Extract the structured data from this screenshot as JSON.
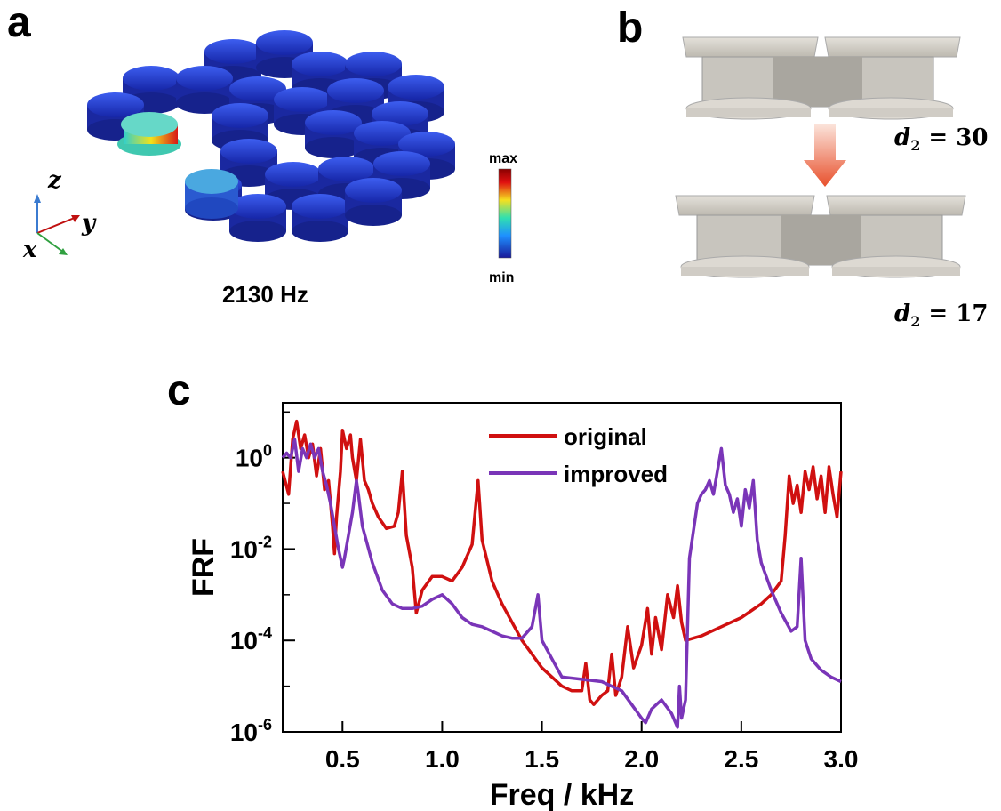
{
  "panel_a": {
    "letter": "a",
    "caption": "2130 Hz",
    "colorbar": {
      "max_label": "max",
      "min_label": "min"
    },
    "axes": {
      "z": "z",
      "y": "y",
      "x": "x"
    }
  },
  "panel_b": {
    "letter": "b",
    "top_label": {
      "var": "d",
      "sub": "2",
      "value": "= 30"
    },
    "bottom_label": {
      "var": "d",
      "sub": "2",
      "value": "= 17"
    }
  },
  "panel_c": {
    "letter": "c"
  },
  "chart_data": {
    "type": "line",
    "title": "",
    "xlabel": "Freq / kHz",
    "ylabel": "FRF",
    "xlim": [
      0.2,
      3.0
    ],
    "ylim_log10": [
      -6,
      1.2
    ],
    "yscale": "log",
    "x_ticks": [
      0.5,
      1.0,
      1.5,
      2.0,
      2.5,
      3.0
    ],
    "x_tick_labels": [
      "0.5",
      "1.0",
      "1.5",
      "2.0",
      "2.5",
      "3.0"
    ],
    "y_ticks_log10": [
      0,
      -2,
      -4,
      -6
    ],
    "y_tick_labels": [
      {
        "base": "10",
        "exp": "0"
      },
      {
        "base": "10",
        "exp": "-2"
      },
      {
        "base": "10",
        "exp": "-4"
      },
      {
        "base": "10",
        "exp": "-6"
      }
    ],
    "legend_position": "top-center",
    "series": [
      {
        "name": "original",
        "color": "#d01010",
        "x": [
          0.2,
          0.23,
          0.25,
          0.27,
          0.29,
          0.31,
          0.33,
          0.35,
          0.37,
          0.39,
          0.41,
          0.43,
          0.45,
          0.46,
          0.47,
          0.49,
          0.5,
          0.52,
          0.54,
          0.55,
          0.57,
          0.59,
          0.61,
          0.63,
          0.65,
          0.68,
          0.72,
          0.76,
          0.78,
          0.8,
          0.82,
          0.85,
          0.87,
          0.9,
          0.95,
          1.0,
          1.05,
          1.1,
          1.15,
          1.18,
          1.2,
          1.25,
          1.3,
          1.35,
          1.4,
          1.45,
          1.5,
          1.55,
          1.6,
          1.65,
          1.7,
          1.72,
          1.74,
          1.76,
          1.8,
          1.83,
          1.85,
          1.87,
          1.9,
          1.93,
          1.96,
          2.0,
          2.03,
          2.05,
          2.07,
          2.1,
          2.13,
          2.16,
          2.18,
          2.2,
          2.22,
          2.3,
          2.4,
          2.5,
          2.6,
          2.65,
          2.7,
          2.72,
          2.74,
          2.76,
          2.78,
          2.8,
          2.82,
          2.84,
          2.86,
          2.88,
          2.9,
          2.92,
          2.94,
          2.96,
          2.98,
          3.0
        ],
        "y_log10": [
          -0.3,
          -0.8,
          0.4,
          0.8,
          0.2,
          0.5,
          0.0,
          0.3,
          -0.4,
          0.2,
          -0.7,
          -0.5,
          -1.5,
          -2.1,
          -1.3,
          -0.3,
          0.6,
          0.2,
          0.5,
          0.0,
          -0.5,
          0.4,
          -0.5,
          -0.7,
          -1.0,
          -1.3,
          -1.55,
          -1.5,
          -1.2,
          -0.3,
          -1.7,
          -2.4,
          -3.4,
          -2.9,
          -2.6,
          -2.6,
          -2.7,
          -2.4,
          -1.9,
          -0.5,
          -1.8,
          -2.7,
          -3.2,
          -3.6,
          -4.0,
          -4.3,
          -4.6,
          -4.8,
          -5.0,
          -5.1,
          -5.1,
          -4.5,
          -5.3,
          -5.4,
          -5.2,
          -5.1,
          -4.3,
          -5.2,
          -4.8,
          -3.7,
          -4.6,
          -4.1,
          -3.3,
          -4.3,
          -3.5,
          -4.2,
          -3.0,
          -3.5,
          -2.8,
          -3.6,
          -4.0,
          -3.9,
          -3.7,
          -3.5,
          -3.2,
          -3.0,
          -2.7,
          -1.7,
          -0.4,
          -1.0,
          -0.6,
          -1.2,
          -0.3,
          -0.7,
          -0.2,
          -0.9,
          -0.4,
          -1.2,
          -0.2,
          -0.8,
          -1.3,
          -0.3
        ]
      },
      {
        "name": "improved",
        "color": "#7a35b8",
        "x": [
          0.2,
          0.22,
          0.24,
          0.26,
          0.28,
          0.3,
          0.32,
          0.34,
          0.36,
          0.38,
          0.4,
          0.42,
          0.44,
          0.46,
          0.48,
          0.5,
          0.51,
          0.53,
          0.55,
          0.57,
          0.58,
          0.6,
          0.65,
          0.7,
          0.75,
          0.8,
          0.85,
          0.9,
          0.95,
          1.0,
          1.05,
          1.1,
          1.15,
          1.2,
          1.25,
          1.3,
          1.35,
          1.4,
          1.45,
          1.48,
          1.5,
          1.55,
          1.6,
          1.7,
          1.8,
          1.9,
          1.95,
          2.0,
          2.02,
          2.05,
          2.1,
          2.15,
          2.18,
          2.19,
          2.2,
          2.22,
          2.24,
          2.26,
          2.28,
          2.3,
          2.32,
          2.34,
          2.36,
          2.38,
          2.4,
          2.42,
          2.44,
          2.46,
          2.48,
          2.5,
          2.52,
          2.54,
          2.56,
          2.58,
          2.6,
          2.65,
          2.7,
          2.75,
          2.78,
          2.8,
          2.82,
          2.85,
          2.9,
          2.95,
          3.0
        ],
        "y_log10": [
          0.0,
          0.1,
          0.0,
          0.4,
          -0.3,
          0.2,
          0.0,
          0.3,
          0.0,
          0.2,
          -0.3,
          -0.6,
          -1.0,
          -1.5,
          -2.0,
          -2.4,
          -2.2,
          -1.7,
          -1.2,
          -0.5,
          -0.8,
          -1.5,
          -2.3,
          -2.9,
          -3.2,
          -3.3,
          -3.3,
          -3.25,
          -3.1,
          -3.0,
          -3.2,
          -3.5,
          -3.65,
          -3.7,
          -3.8,
          -3.9,
          -3.95,
          -3.95,
          -3.7,
          -3.0,
          -4.0,
          -4.4,
          -4.8,
          -4.85,
          -4.9,
          -5.1,
          -5.4,
          -5.7,
          -5.8,
          -5.5,
          -5.3,
          -5.6,
          -5.9,
          -5.0,
          -5.7,
          -5.3,
          -2.2,
          -1.6,
          -1.0,
          -0.8,
          -0.7,
          -0.5,
          -0.8,
          -0.3,
          0.2,
          -0.6,
          -0.8,
          -1.2,
          -0.9,
          -1.5,
          -0.7,
          -1.1,
          -0.5,
          -1.8,
          -2.3,
          -2.9,
          -3.4,
          -3.8,
          -3.7,
          -2.2,
          -4.0,
          -4.4,
          -4.65,
          -4.8,
          -4.9
        ]
      }
    ]
  }
}
